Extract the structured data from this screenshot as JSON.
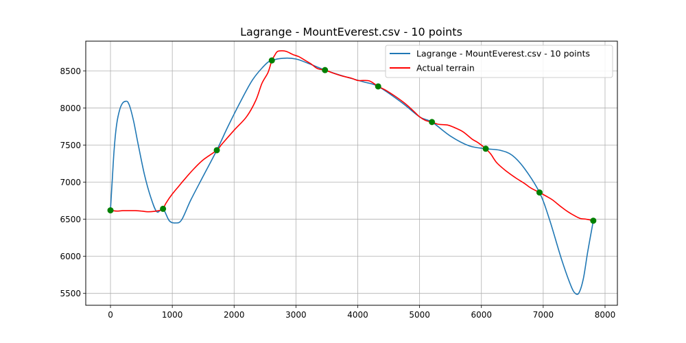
{
  "chart_data": {
    "type": "line",
    "title": "Lagrange - MountEverest.csv - 10 points",
    "xlabel": "",
    "ylabel": "",
    "xlim": [
      -400,
      8200
    ],
    "ylim": [
      5340,
      8900
    ],
    "grid": true,
    "legend_placement": "top-right",
    "x_ticks": [
      0,
      1000,
      2000,
      3000,
      4000,
      5000,
      6000,
      7000,
      8000
    ],
    "y_ticks": [
      5500,
      6000,
      6500,
      7000,
      7500,
      8000,
      8500
    ],
    "series": [
      {
        "name": "Lagrange - MountEverest.csv - 10 points",
        "color": "#1f77b4",
        "x": [
          0,
          30,
          60,
          100,
          150,
          200,
          250,
          280,
          320,
          380,
          450,
          550,
          650,
          750,
          850,
          950,
          1050,
          1150,
          1300,
          1500,
          1720,
          1900,
          2100,
          2300,
          2500,
          2610,
          2800,
          3000,
          3200,
          3470,
          3800,
          4100,
          4330,
          4700,
          5000,
          5200,
          5500,
          5800,
          6070,
          6300,
          6500,
          6700,
          6940,
          7100,
          7300,
          7450,
          7520,
          7580,
          7650,
          7720,
          7810
        ],
        "y": [
          6620,
          7050,
          7450,
          7780,
          7980,
          8070,
          8090,
          8080,
          8000,
          7800,
          7500,
          7100,
          6800,
          6600,
          6640,
          6480,
          6450,
          6490,
          6760,
          7080,
          7430,
          7750,
          8080,
          8380,
          8580,
          8640,
          8670,
          8660,
          8600,
          8510,
          8420,
          8350,
          8290,
          8080,
          7880,
          7810,
          7620,
          7490,
          7450,
          7430,
          7360,
          7180,
          6860,
          6500,
          5950,
          5600,
          5500,
          5510,
          5700,
          6060,
          6480
        ]
      },
      {
        "name": "Actual terrain",
        "color": "#ff0000",
        "x": [
          0,
          100,
          200,
          300,
          400,
          500,
          600,
          700,
          800,
          850,
          900,
          1000,
          1100,
          1200,
          1350,
          1500,
          1720,
          1800,
          2000,
          2200,
          2350,
          2450,
          2550,
          2610,
          2650,
          2700,
          2780,
          2850,
          2950,
          3050,
          3150,
          3250,
          3350,
          3470,
          3600,
          3750,
          3900,
          4000,
          4100,
          4200,
          4330,
          4450,
          4600,
          4750,
          4900,
          5000,
          5100,
          5200,
          5300,
          5450,
          5550,
          5700,
          5850,
          5950,
          6070,
          6150,
          6250,
          6400,
          6550,
          6700,
          6800,
          6940,
          7050,
          7150,
          7300,
          7400,
          7500,
          7600,
          7700,
          7810
        ],
        "y": [
          6620,
          6610,
          6615,
          6615,
          6615,
          6610,
          6600,
          6605,
          6620,
          6640,
          6720,
          6840,
          6940,
          7040,
          7180,
          7300,
          7430,
          7510,
          7700,
          7880,
          8100,
          8330,
          8480,
          8640,
          8700,
          8760,
          8770,
          8760,
          8720,
          8690,
          8640,
          8590,
          8530,
          8510,
          8470,
          8430,
          8400,
          8370,
          8370,
          8360,
          8290,
          8240,
          8160,
          8070,
          7960,
          7880,
          7830,
          7810,
          7780,
          7770,
          7740,
          7680,
          7580,
          7530,
          7450,
          7380,
          7260,
          7150,
          7060,
          6980,
          6920,
          6860,
          6810,
          6760,
          6660,
          6600,
          6550,
          6510,
          6500,
          6480
        ]
      }
    ],
    "points": {
      "color": "#008000",
      "x": [
        0,
        850,
        1720,
        2610,
        3470,
        4330,
        5200,
        6070,
        6940,
        7810
      ],
      "y": [
        6620,
        6640,
        7430,
        8640,
        8510,
        8290,
        7810,
        7450,
        6860,
        6480
      ]
    }
  }
}
